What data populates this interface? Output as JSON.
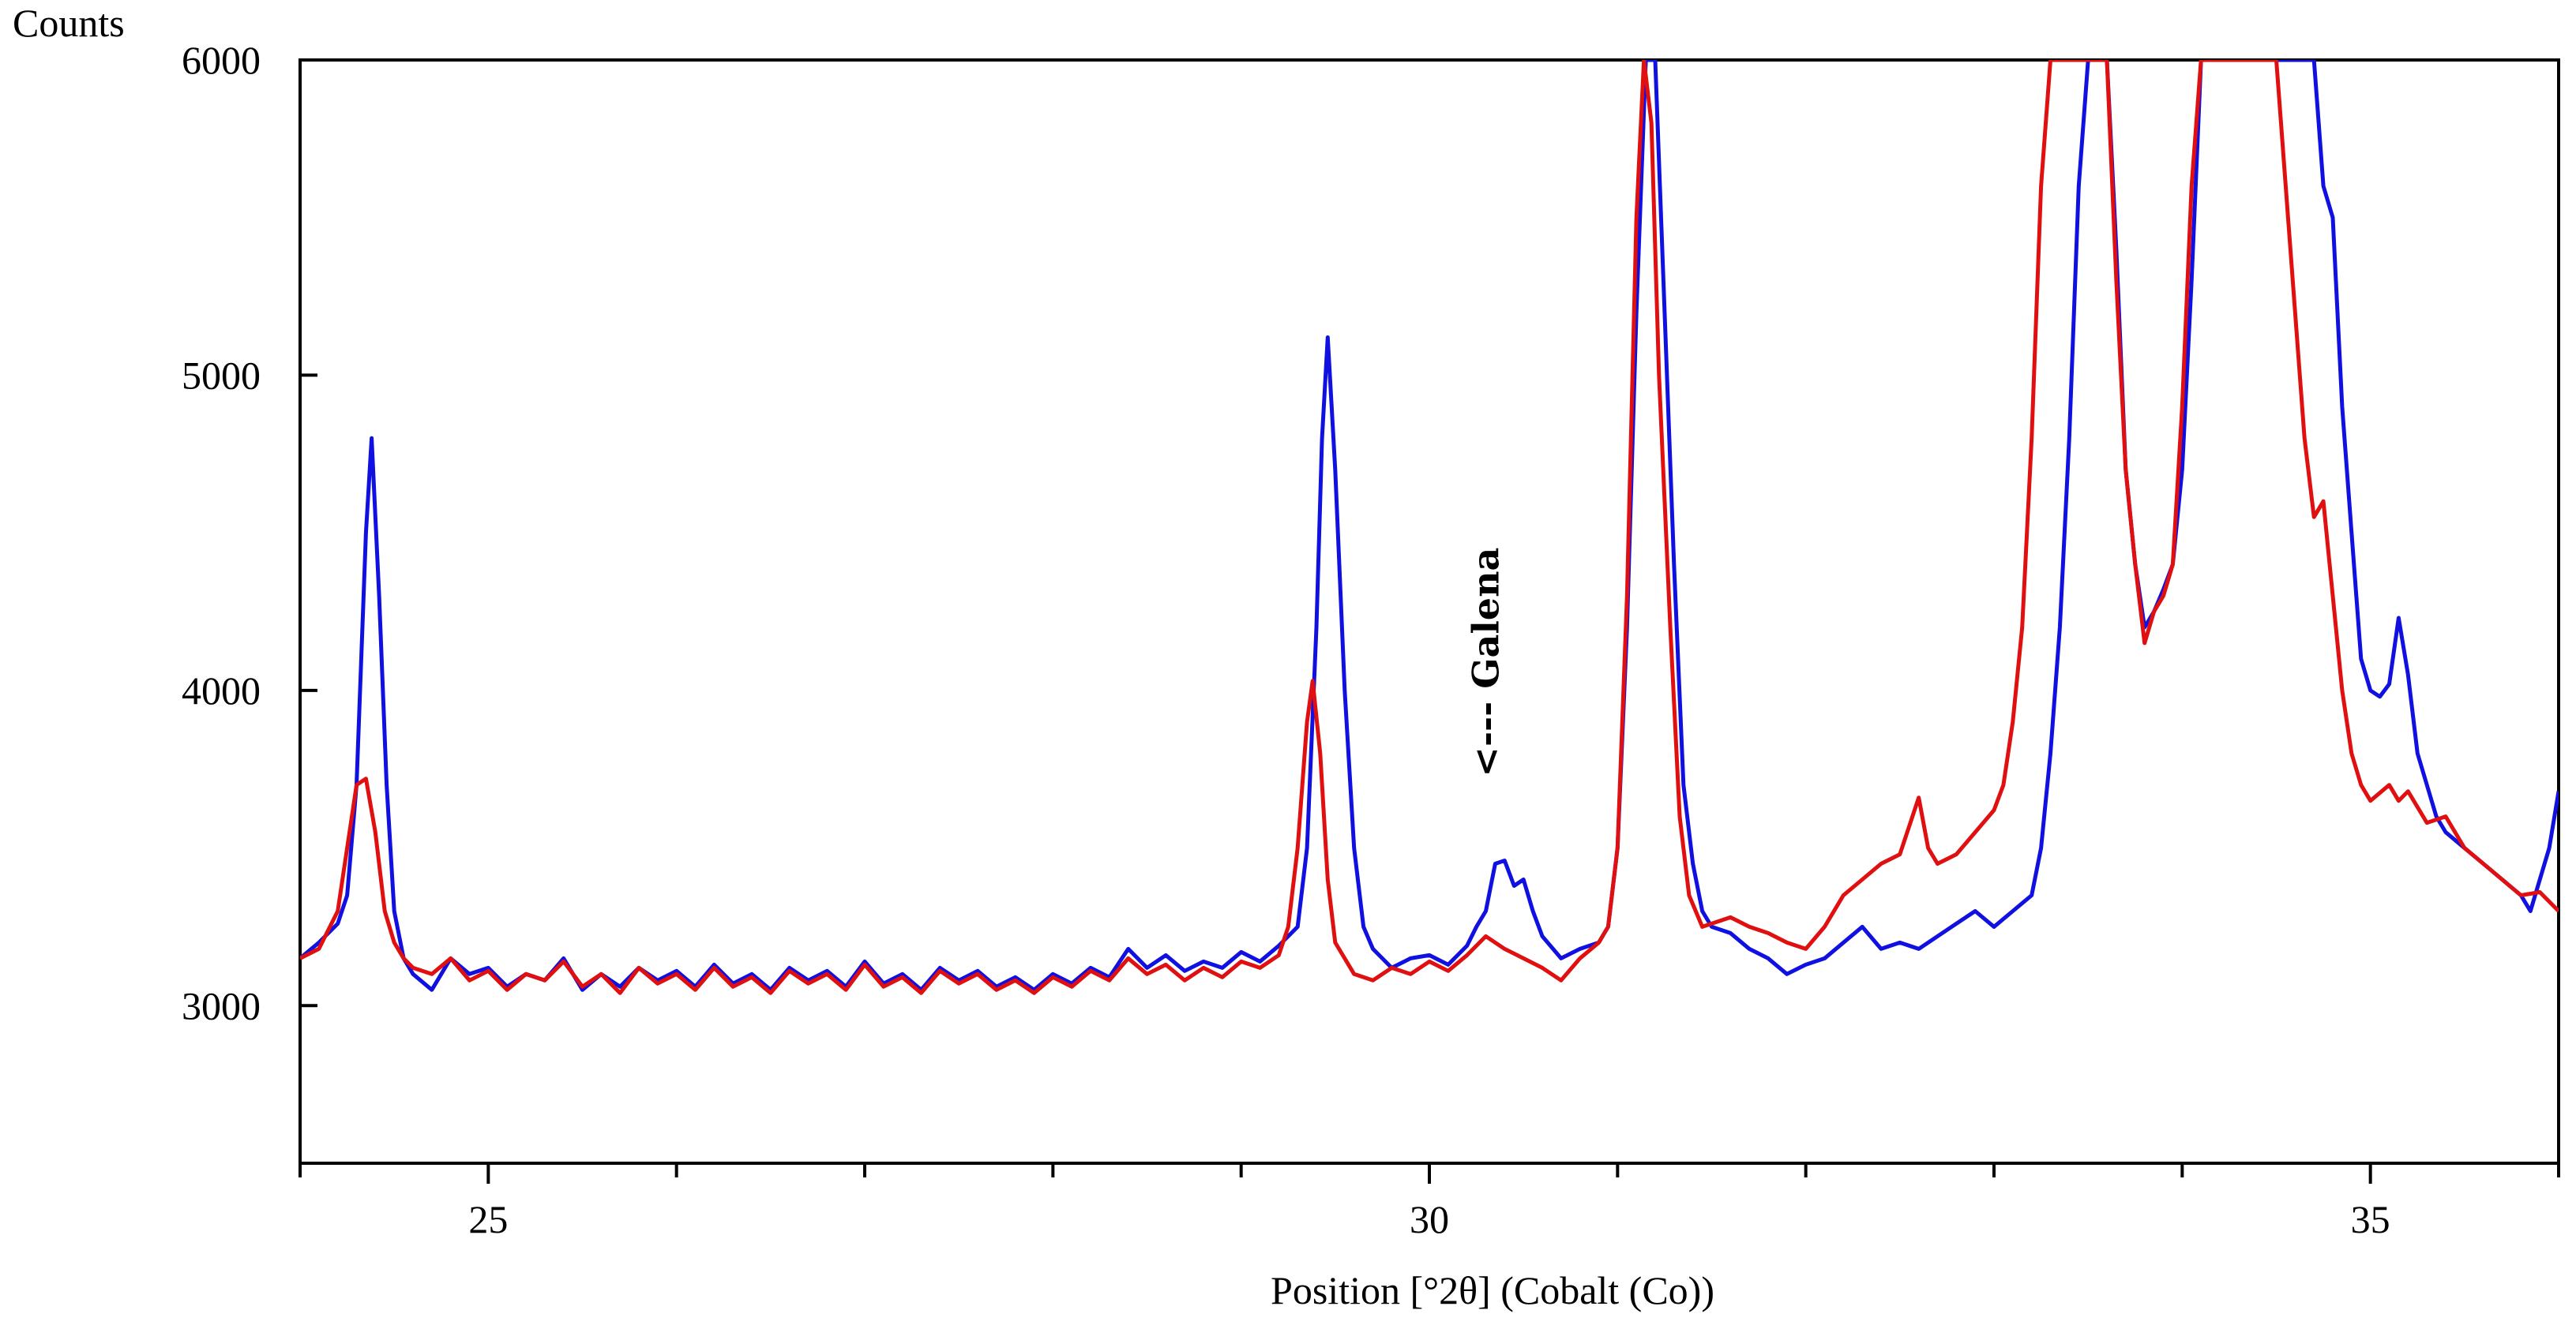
{
  "chart_data": {
    "type": "line",
    "ylabel": "Counts",
    "xlabel": "Position [°2θ] (Cobalt (Co))",
    "xlim": [
      24.0,
      36.0
    ],
    "ylim": [
      2500,
      6000
    ],
    "x_ticks_major": [
      25,
      30,
      35
    ],
    "x_tick_labels": [
      "25",
      "30",
      "35"
    ],
    "y_ticks": [
      3000,
      4000,
      5000,
      6000
    ],
    "y_tick_labels": [
      "3000",
      "4000",
      "5000",
      "6000"
    ],
    "grid": false,
    "legend": "none",
    "annotation": {
      "text": "<--- Galena",
      "x": 30.3,
      "y": 3550
    },
    "series": [
      {
        "color": "#1010e0",
        "points": [
          [
            24.0,
            3150
          ],
          [
            24.1,
            3200
          ],
          [
            24.2,
            3260
          ],
          [
            24.25,
            3350
          ],
          [
            24.3,
            3700
          ],
          [
            24.35,
            4500
          ],
          [
            24.38,
            4800
          ],
          [
            24.42,
            4300
          ],
          [
            24.46,
            3700
          ],
          [
            24.5,
            3300
          ],
          [
            24.55,
            3150
          ],
          [
            24.6,
            3100
          ],
          [
            24.7,
            3050
          ],
          [
            24.8,
            3150
          ],
          [
            24.9,
            3100
          ],
          [
            25.0,
            3120
          ],
          [
            25.1,
            3060
          ],
          [
            25.2,
            3100
          ],
          [
            25.3,
            3080
          ],
          [
            25.4,
            3150
          ],
          [
            25.5,
            3050
          ],
          [
            25.6,
            3100
          ],
          [
            25.7,
            3060
          ],
          [
            25.8,
            3120
          ],
          [
            25.9,
            3080
          ],
          [
            26.0,
            3110
          ],
          [
            26.1,
            3060
          ],
          [
            26.2,
            3130
          ],
          [
            26.3,
            3070
          ],
          [
            26.4,
            3100
          ],
          [
            26.5,
            3050
          ],
          [
            26.6,
            3120
          ],
          [
            26.7,
            3080
          ],
          [
            26.8,
            3110
          ],
          [
            26.9,
            3060
          ],
          [
            27.0,
            3140
          ],
          [
            27.1,
            3070
          ],
          [
            27.2,
            3100
          ],
          [
            27.3,
            3050
          ],
          [
            27.4,
            3120
          ],
          [
            27.5,
            3080
          ],
          [
            27.6,
            3110
          ],
          [
            27.7,
            3060
          ],
          [
            27.8,
            3090
          ],
          [
            27.9,
            3050
          ],
          [
            28.0,
            3100
          ],
          [
            28.1,
            3070
          ],
          [
            28.2,
            3120
          ],
          [
            28.3,
            3090
          ],
          [
            28.4,
            3180
          ],
          [
            28.5,
            3120
          ],
          [
            28.6,
            3160
          ],
          [
            28.7,
            3110
          ],
          [
            28.8,
            3140
          ],
          [
            28.9,
            3120
          ],
          [
            29.0,
            3170
          ],
          [
            29.1,
            3140
          ],
          [
            29.2,
            3190
          ],
          [
            29.3,
            3250
          ],
          [
            29.35,
            3500
          ],
          [
            29.4,
            4200
          ],
          [
            29.43,
            4800
          ],
          [
            29.46,
            5120
          ],
          [
            29.5,
            4700
          ],
          [
            29.55,
            4000
          ],
          [
            29.6,
            3500
          ],
          [
            29.65,
            3250
          ],
          [
            29.7,
            3180
          ],
          [
            29.8,
            3120
          ],
          [
            29.9,
            3150
          ],
          [
            30.0,
            3160
          ],
          [
            30.1,
            3130
          ],
          [
            30.2,
            3190
          ],
          [
            30.25,
            3250
          ],
          [
            30.3,
            3300
          ],
          [
            30.35,
            3450
          ],
          [
            30.4,
            3460
          ],
          [
            30.45,
            3380
          ],
          [
            30.5,
            3400
          ],
          [
            30.55,
            3300
          ],
          [
            30.6,
            3220
          ],
          [
            30.7,
            3150
          ],
          [
            30.8,
            3180
          ],
          [
            30.9,
            3200
          ],
          [
            30.95,
            3250
          ],
          [
            31.0,
            3500
          ],
          [
            31.05,
            4200
          ],
          [
            31.1,
            5200
          ],
          [
            31.15,
            6000
          ],
          [
            31.2,
            6000
          ],
          [
            31.25,
            5200
          ],
          [
            31.3,
            4400
          ],
          [
            31.35,
            3700
          ],
          [
            31.4,
            3450
          ],
          [
            31.45,
            3300
          ],
          [
            31.5,
            3250
          ],
          [
            31.6,
            3230
          ],
          [
            31.7,
            3180
          ],
          [
            31.8,
            3150
          ],
          [
            31.9,
            3100
          ],
          [
            32.0,
            3130
          ],
          [
            32.1,
            3150
          ],
          [
            32.2,
            3200
          ],
          [
            32.3,
            3250
          ],
          [
            32.4,
            3180
          ],
          [
            32.5,
            3200
          ],
          [
            32.6,
            3180
          ],
          [
            32.7,
            3220
          ],
          [
            32.8,
            3260
          ],
          [
            32.9,
            3300
          ],
          [
            33.0,
            3250
          ],
          [
            33.1,
            3300
          ],
          [
            33.2,
            3350
          ],
          [
            33.25,
            3500
          ],
          [
            33.3,
            3800
          ],
          [
            33.35,
            4200
          ],
          [
            33.4,
            4800
          ],
          [
            33.45,
            5600
          ],
          [
            33.5,
            6000
          ],
          [
            33.6,
            6000
          ],
          [
            33.65,
            5400
          ],
          [
            33.7,
            4700
          ],
          [
            33.75,
            4400
          ],
          [
            33.8,
            4200
          ],
          [
            33.85,
            4250
          ],
          [
            33.9,
            4320
          ],
          [
            33.95,
            4400
          ],
          [
            34.0,
            4700
          ],
          [
            34.05,
            5300
          ],
          [
            34.1,
            6000
          ],
          [
            34.2,
            6000
          ],
          [
            34.5,
            6000
          ],
          [
            34.7,
            6000
          ],
          [
            34.75,
            5600
          ],
          [
            34.8,
            5500
          ],
          [
            34.85,
            4900
          ],
          [
            34.9,
            4500
          ],
          [
            34.95,
            4100
          ],
          [
            35.0,
            4000
          ],
          [
            35.05,
            3980
          ],
          [
            35.1,
            4020
          ],
          [
            35.15,
            4230
          ],
          [
            35.2,
            4050
          ],
          [
            35.25,
            3800
          ],
          [
            35.3,
            3700
          ],
          [
            35.35,
            3600
          ],
          [
            35.4,
            3550
          ],
          [
            35.5,
            3500
          ],
          [
            35.6,
            3450
          ],
          [
            35.7,
            3400
          ],
          [
            35.8,
            3350
          ],
          [
            35.85,
            3300
          ],
          [
            35.9,
            3400
          ],
          [
            35.95,
            3500
          ],
          [
            36.0,
            3680
          ]
        ]
      },
      {
        "color": "#e01010",
        "points": [
          [
            24.0,
            3150
          ],
          [
            24.1,
            3180
          ],
          [
            24.2,
            3300
          ],
          [
            24.25,
            3500
          ],
          [
            24.3,
            3700
          ],
          [
            24.35,
            3720
          ],
          [
            24.4,
            3550
          ],
          [
            24.45,
            3300
          ],
          [
            24.5,
            3200
          ],
          [
            24.55,
            3150
          ],
          [
            24.6,
            3120
          ],
          [
            24.7,
            3100
          ],
          [
            24.8,
            3150
          ],
          [
            24.9,
            3080
          ],
          [
            25.0,
            3110
          ],
          [
            25.1,
            3050
          ],
          [
            25.2,
            3100
          ],
          [
            25.3,
            3080
          ],
          [
            25.4,
            3140
          ],
          [
            25.5,
            3060
          ],
          [
            25.6,
            3100
          ],
          [
            25.7,
            3040
          ],
          [
            25.8,
            3120
          ],
          [
            25.9,
            3070
          ],
          [
            26.0,
            3100
          ],
          [
            26.1,
            3050
          ],
          [
            26.2,
            3120
          ],
          [
            26.3,
            3060
          ],
          [
            26.4,
            3090
          ],
          [
            26.5,
            3040
          ],
          [
            26.6,
            3110
          ],
          [
            26.7,
            3070
          ],
          [
            26.8,
            3100
          ],
          [
            26.9,
            3050
          ],
          [
            27.0,
            3130
          ],
          [
            27.1,
            3060
          ],
          [
            27.2,
            3090
          ],
          [
            27.3,
            3040
          ],
          [
            27.4,
            3110
          ],
          [
            27.5,
            3070
          ],
          [
            27.6,
            3100
          ],
          [
            27.7,
            3050
          ],
          [
            27.8,
            3080
          ],
          [
            27.9,
            3040
          ],
          [
            28.0,
            3090
          ],
          [
            28.1,
            3060
          ],
          [
            28.2,
            3110
          ],
          [
            28.3,
            3080
          ],
          [
            28.4,
            3150
          ],
          [
            28.5,
            3100
          ],
          [
            28.6,
            3130
          ],
          [
            28.7,
            3080
          ],
          [
            28.8,
            3120
          ],
          [
            28.9,
            3090
          ],
          [
            29.0,
            3140
          ],
          [
            29.1,
            3120
          ],
          [
            29.2,
            3160
          ],
          [
            29.25,
            3250
          ],
          [
            29.3,
            3500
          ],
          [
            29.35,
            3900
          ],
          [
            29.38,
            4030
          ],
          [
            29.42,
            3800
          ],
          [
            29.46,
            3400
          ],
          [
            29.5,
            3200
          ],
          [
            29.6,
            3100
          ],
          [
            29.7,
            3080
          ],
          [
            29.8,
            3120
          ],
          [
            29.9,
            3100
          ],
          [
            30.0,
            3140
          ],
          [
            30.1,
            3110
          ],
          [
            30.2,
            3160
          ],
          [
            30.3,
            3220
          ],
          [
            30.4,
            3180
          ],
          [
            30.5,
            3150
          ],
          [
            30.6,
            3120
          ],
          [
            30.7,
            3080
          ],
          [
            30.8,
            3150
          ],
          [
            30.9,
            3200
          ],
          [
            30.95,
            3250
          ],
          [
            31.0,
            3500
          ],
          [
            31.05,
            4300
          ],
          [
            31.1,
            5500
          ],
          [
            31.14,
            6000
          ],
          [
            31.18,
            5800
          ],
          [
            31.22,
            5000
          ],
          [
            31.28,
            4200
          ],
          [
            31.33,
            3600
          ],
          [
            31.38,
            3350
          ],
          [
            31.45,
            3250
          ],
          [
            31.5,
            3260
          ],
          [
            31.6,
            3280
          ],
          [
            31.7,
            3250
          ],
          [
            31.8,
            3230
          ],
          [
            31.9,
            3200
          ],
          [
            32.0,
            3180
          ],
          [
            32.1,
            3250
          ],
          [
            32.2,
            3350
          ],
          [
            32.3,
            3400
          ],
          [
            32.4,
            3450
          ],
          [
            32.5,
            3480
          ],
          [
            32.6,
            3660
          ],
          [
            32.65,
            3500
          ],
          [
            32.7,
            3450
          ],
          [
            32.8,
            3480
          ],
          [
            32.9,
            3550
          ],
          [
            33.0,
            3620
          ],
          [
            33.05,
            3700
          ],
          [
            33.1,
            3900
          ],
          [
            33.15,
            4200
          ],
          [
            33.2,
            4800
          ],
          [
            33.25,
            5600
          ],
          [
            33.3,
            6000
          ],
          [
            33.5,
            6000
          ],
          [
            33.6,
            6000
          ],
          [
            33.65,
            5300
          ],
          [
            33.7,
            4700
          ],
          [
            33.75,
            4400
          ],
          [
            33.8,
            4150
          ],
          [
            33.85,
            4250
          ],
          [
            33.9,
            4300
          ],
          [
            33.95,
            4400
          ],
          [
            34.0,
            4900
          ],
          [
            34.05,
            5600
          ],
          [
            34.1,
            6000
          ],
          [
            34.3,
            6000
          ],
          [
            34.5,
            6000
          ],
          [
            34.55,
            5600
          ],
          [
            34.6,
            5200
          ],
          [
            34.65,
            4800
          ],
          [
            34.7,
            4550
          ],
          [
            34.75,
            4600
          ],
          [
            34.8,
            4300
          ],
          [
            34.85,
            4000
          ],
          [
            34.9,
            3800
          ],
          [
            34.95,
            3700
          ],
          [
            35.0,
            3650
          ],
          [
            35.1,
            3700
          ],
          [
            35.15,
            3650
          ],
          [
            35.2,
            3680
          ],
          [
            35.3,
            3580
          ],
          [
            35.4,
            3600
          ],
          [
            35.5,
            3500
          ],
          [
            35.6,
            3450
          ],
          [
            35.7,
            3400
          ],
          [
            35.8,
            3350
          ],
          [
            35.9,
            3360
          ],
          [
            36.0,
            3300
          ]
        ]
      }
    ]
  }
}
